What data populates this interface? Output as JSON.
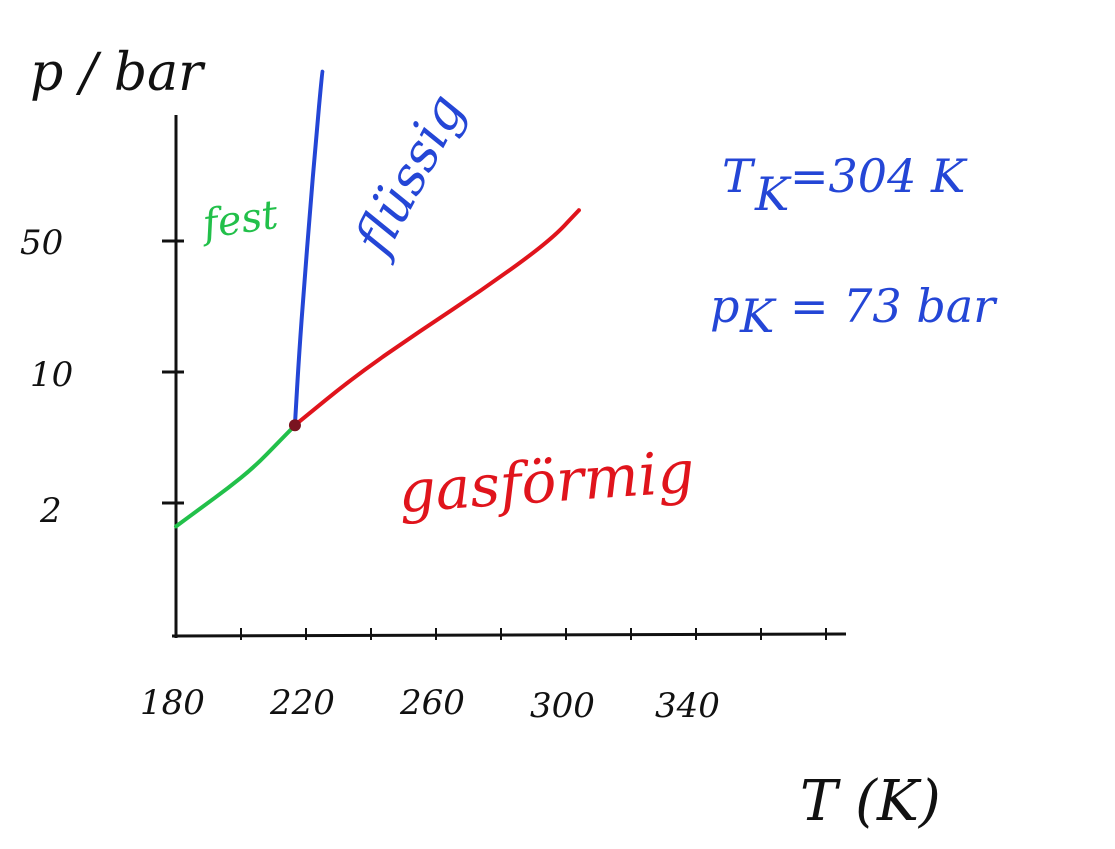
{
  "chart_data": {
    "type": "line",
    "title": "",
    "xlabel": "T (K)",
    "ylabel": "p / bar",
    "x_ticks": [
      "180",
      "220",
      "260",
      "300",
      "340"
    ],
    "y_ticks": [
      "2",
      "10",
      "50"
    ],
    "series": [
      {
        "name": "fest",
        "color": "#22c04a",
        "x": [
          180,
          188,
          196,
          204,
          212,
          216.6
        ],
        "y": [
          1.5,
          1.9,
          2.4,
          3.1,
          4.3,
          5.2
        ]
      },
      {
        "name": "flüssig",
        "color": "#2446d6",
        "x": [
          216.6,
          217.8,
          219.5,
          221.2,
          223,
          225
        ],
        "y": [
          5.2,
          12,
          30,
          70,
          170,
          400
        ]
      },
      {
        "name": "gasförmig",
        "color": "#e0141c",
        "x": [
          216.6,
          235,
          255,
          275,
          295,
          304
        ],
        "y": [
          5.2,
          9.5,
          16.5,
          28,
          50,
          73
        ]
      }
    ],
    "triple_point": {
      "x": 216.6,
      "y": 5.2,
      "color": "#7a1420"
    },
    "annotations": {
      "critical_temperature": "T",
      "critical_temperature_sub": "K",
      "critical_temperature_value": "=304 K",
      "critical_pressure": "p",
      "critical_pressure_sub": "K",
      "critical_pressure_value": "= 73 bar"
    },
    "phase_labels": {
      "solid": "fest",
      "liquid": "flüssig",
      "gas": "gasförmig"
    },
    "colors": {
      "axis": "#111111",
      "annotation": "#2446d6",
      "solid": "#22c04a",
      "liquid": "#2446d6",
      "gas": "#e0141c"
    }
  }
}
